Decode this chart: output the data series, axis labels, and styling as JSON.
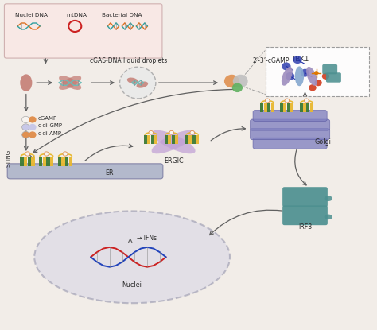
{
  "bg_color": "#f2ede8",
  "legend_box_color": "#f8e8e5",
  "labels": {
    "nuclei_dna": "Nuclei DNA",
    "mtdna": "mtDNA",
    "bacterial_dna": "Bacterial DNA",
    "cgas_droplets": "cGAS-DNA liquid droplets",
    "cgamp_label": "2’-3’-cGAMP",
    "tbk1": "TBK1",
    "golgi": "Golgi",
    "irf3": "IRF3",
    "ergic": "ERGIC",
    "er": "ER",
    "sting": "STING",
    "cgamp": "cGAMP",
    "cdi_gmp": "c-di-GMP",
    "cdi_amp": "c-di-AMP",
    "ifns": "→ IFNs",
    "nuclei": "Nuclei"
  },
  "colors": {
    "salmon": "#c47b72",
    "teal_dna": "#6dbcb8",
    "green_dark": "#3d7a35",
    "green_mid": "#5a9e40",
    "yellow": "#e8b830",
    "purple_light": "#c0a0d5",
    "golgi_blue": "#8080c0",
    "arrow_color": "#606060",
    "text_color": "#2a2a2a",
    "dna_red": "#cc2222",
    "dna_blue": "#2244bb",
    "dna_orange": "#e07020",
    "dna_teal": "#30a0a0",
    "nucleus_gray": "#9090a8",
    "er_color": "#a8b0c8",
    "irf3_teal": "#4d9090",
    "orange_ball": "#e09050",
    "white_ball": "#f8f4f0",
    "gray_dashed": "#909090",
    "chem_blue": "#2233aa",
    "chem_red": "#cc2200",
    "chem_orange": "#dd7700",
    "tbk1_blue": "#88aad0",
    "tbk1_purple": "#a090c0"
  }
}
